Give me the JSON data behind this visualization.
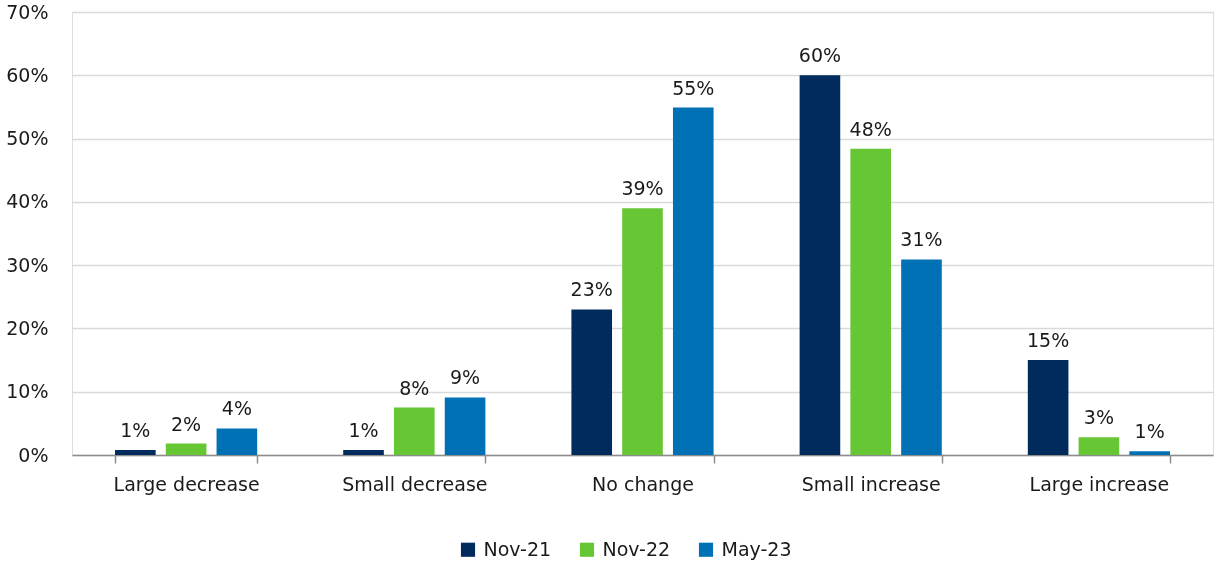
{
  "chart_data": {
    "type": "bar",
    "categories": [
      "Large decrease",
      "Small decrease",
      "No change",
      "Small increase",
      "Large increase"
    ],
    "series": [
      {
        "name": "Nov-21",
        "color": "#002b5c",
        "values": [
          0.8,
          0.8,
          23,
          60,
          15
        ],
        "value_labels": [
          "1%",
          "1%",
          "23%",
          "60%",
          "15%"
        ]
      },
      {
        "name": "Nov-22",
        "color": "#66c633",
        "values": [
          1.8,
          7.5,
          39,
          48.4,
          2.8
        ],
        "value_labels": [
          "2%",
          "8%",
          "39%",
          "48%",
          "3%"
        ]
      },
      {
        "name": "May-23",
        "color": "#0071b5",
        "values": [
          4.2,
          9.1,
          54.9,
          30.9,
          0.6
        ],
        "value_labels": [
          "4%",
          "9%",
          "55%",
          "31%",
          "1%"
        ]
      }
    ],
    "ylim": [
      0,
      70
    ],
    "yticks": [
      {
        "value": 0,
        "label": "0%"
      },
      {
        "value": 10,
        "label": "10%"
      },
      {
        "value": 20,
        "label": "20%"
      },
      {
        "value": 30,
        "label": "30%"
      },
      {
        "value": 40,
        "label": "40%"
      },
      {
        "value": 50,
        "label": "50%"
      },
      {
        "value": 60,
        "label": "60%"
      },
      {
        "value": 70,
        "label": "70%"
      }
    ],
    "grid": "y",
    "legend": "bottom"
  }
}
